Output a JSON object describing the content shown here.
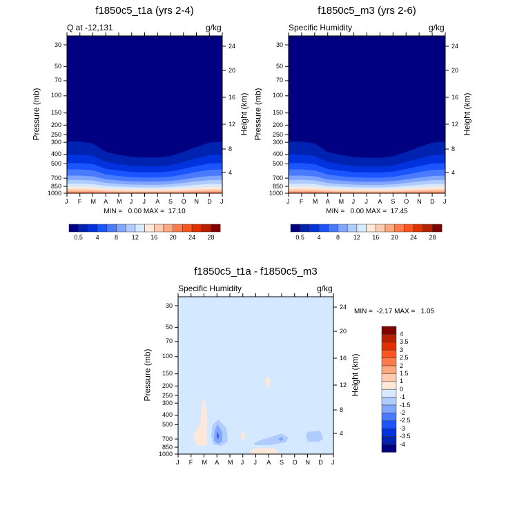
{
  "chart_data": [
    {
      "type": "contour",
      "title": "f1850c5_t1a (yrs 2-4)",
      "left_subtitle": "Q at -12,131",
      "right_subtitle": "g/kg",
      "ylabel": "Pressure (mb)",
      "ylabel_right": "Height (km)",
      "minmax": "MIN =   0.00 MAX =  17.10",
      "x_ticks": [
        "J",
        "F",
        "M",
        "A",
        "M",
        "J",
        "J",
        "A",
        "S",
        "O",
        "N",
        "D",
        "J"
      ],
      "y_ticks": [
        "30",
        "50",
        "70",
        "100",
        "150",
        "200",
        "250",
        "300",
        "400",
        "500",
        "700",
        "850",
        "1000"
      ],
      "y_ticks_right": [
        "24",
        "20",
        "16",
        "12",
        "8",
        "4"
      ],
      "colorbar_labels": [
        "0.5",
        "4",
        "8",
        "12",
        "16",
        "20",
        "24",
        "28"
      ]
    },
    {
      "type": "contour",
      "title": "f1850c5_m3 (yrs 2-6)",
      "left_subtitle": "Specific Humidity",
      "right_subtitle": "g/kg",
      "ylabel": "Pressure (mb)",
      "ylabel_right": "Height (km)",
      "minmax": "MIN =   0.00 MAX =  17.45",
      "x_ticks": [
        "J",
        "F",
        "M",
        "A",
        "M",
        "J",
        "J",
        "A",
        "S",
        "O",
        "N",
        "D",
        "J"
      ],
      "y_ticks": [
        "30",
        "50",
        "70",
        "100",
        "150",
        "200",
        "250",
        "300",
        "400",
        "500",
        "700",
        "850",
        "1000"
      ],
      "y_ticks_right": [
        "24",
        "20",
        "16",
        "12",
        "8",
        "4"
      ],
      "colorbar_labels": [
        "0.5",
        "4",
        "8",
        "12",
        "16",
        "20",
        "24",
        "28"
      ]
    },
    {
      "type": "contour",
      "title": "f1850c5_t1a - f1850c5_m3",
      "left_subtitle": "Specific Humidity",
      "right_subtitle": "g/kg",
      "ylabel": "Pressure (mb)",
      "ylabel_right": "Height (km)",
      "minmax": "MIN =  -2.17 MAX =   1.05",
      "x_ticks": [
        "J",
        "F",
        "M",
        "A",
        "M",
        "J",
        "J",
        "A",
        "S",
        "O",
        "N",
        "D",
        "J"
      ],
      "y_ticks": [
        "30",
        "50",
        "70",
        "100",
        "150",
        "200",
        "250",
        "300",
        "400",
        "500",
        "700",
        "850",
        "1000"
      ],
      "y_ticks_right": [
        "24",
        "20",
        "16",
        "12",
        "8",
        "4"
      ],
      "colorbar_labels": [
        "4",
        "3.5",
        "3",
        "2.5",
        "2",
        "1.5",
        "1",
        "0",
        "-1",
        "-1.5",
        "-2",
        "-2.5",
        "-3",
        "-3.5",
        "-4"
      ]
    }
  ],
  "colors": {
    "abs_scale": [
      "#000080",
      "#0022b0",
      "#0033dd",
      "#1a55ff",
      "#4a7aff",
      "#80a6ff",
      "#b0ccff",
      "#d8eaff",
      "#ffe8d8",
      "#ffcab0",
      "#ffa880",
      "#ff7a4a",
      "#ff5520",
      "#e03000",
      "#b82000",
      "#800000"
    ],
    "diff_scale": [
      "#800000",
      "#b82000",
      "#e03000",
      "#ff5520",
      "#ff7a4a",
      "#ffa880",
      "#ffcab0",
      "#ffe8d8",
      "#d8eaff",
      "#b0ccff",
      "#80a6ff",
      "#4a7aff",
      "#1a55ff",
      "#0033dd",
      "#0022b0",
      "#000080"
    ]
  }
}
